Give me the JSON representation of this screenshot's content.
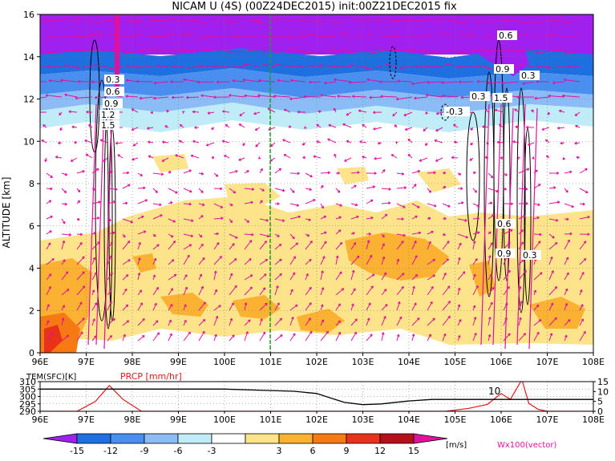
{
  "title": "NICAM U (4S) (00Z24DEC2015) init:00Z21DEC2015 fix",
  "main": {
    "ylabel": "ALTITUDE [km]",
    "x_ticks": [
      "96E",
      "97E",
      "98E",
      "99E",
      "100E",
      "101E",
      "102E",
      "103E",
      "104E",
      "105E",
      "106E",
      "107E",
      "108E"
    ],
    "y_ticks": [
      "0",
      "2",
      "4",
      "6",
      "8",
      "10",
      "12",
      "14",
      "16"
    ],
    "contour_labels": [
      "0.3",
      "0.6",
      "0.9",
      "1.2",
      "1.5",
      "-0.3",
      "0.3",
      "0.6",
      "0.9",
      "1.5",
      "0.3",
      "0.6",
      "0.9",
      "0.3"
    ]
  },
  "bottom": {
    "left_label": "TEM(SFC)[K]",
    "right_label": "PRCP [mm/hr]",
    "left_ticks": [
      "310",
      "305",
      "300",
      "295",
      "290"
    ],
    "right_ticks": [
      "15",
      "10",
      "5",
      "0"
    ],
    "inline_label": "10",
    "x_ticks": [
      "96E",
      "97E",
      "98E",
      "99E",
      "100E",
      "101E",
      "102E",
      "103E",
      "104E",
      "105E",
      "106E",
      "107E",
      "108E"
    ]
  },
  "colorbar": {
    "labels": [
      "-15",
      "-12",
      "-9",
      "-6",
      "-3",
      "3",
      "6",
      "9",
      "12",
      "15"
    ],
    "unit": "[m/s]",
    "colors": [
      "#a020f0",
      "#1e6fe0",
      "#4a8ff0",
      "#8bbcf5",
      "#c0ecf8",
      "#ffffff",
      "#fde38a",
      "#fbb232",
      "#f57a13",
      "#e8321c",
      "#b3101c",
      "#e0119d"
    ]
  },
  "vector_label": "Wx100(vector)",
  "chart_data": {
    "type": "heatmap",
    "title": "NICAM U (4S) (00Z24DEC2015) init:00Z21DEC2015 fix",
    "xlabel": "",
    "ylabel": "ALTITUDE [km]",
    "xlim": [
      96,
      108
    ],
    "ylim": [
      0,
      16
    ],
    "bands": [
      {
        "level": "-15",
        "color": "#a020f0",
        "y_range": [
          14.2,
          16
        ]
      },
      {
        "level": "-12",
        "color": "#1e6fe0",
        "y_range": [
          13.2,
          14.2
        ]
      },
      {
        "level": "-9",
        "color": "#4a8ff0",
        "y_range": [
          12.2,
          13.2
        ]
      },
      {
        "level": "-6",
        "color": "#8bbcf5",
        "y_range": [
          11.5,
          12.2
        ]
      },
      {
        "level": "-3",
        "color": "#c0ecf8",
        "y_range": [
          10.5,
          11.5
        ]
      },
      {
        "level": "6",
        "color": "#fde38a",
        "y_range": [
          2.0,
          5.0
        ]
      }
    ],
    "vertical_line_x": 101,
    "surface": {
      "temperature": {
        "x": [
          96,
          97,
          98,
          99,
          100,
          101,
          101.5,
          102,
          102.3,
          102.6,
          103,
          103.4,
          104,
          104.5,
          105,
          106,
          107,
          108
        ],
        "y": [
          305,
          305,
          305,
          305,
          305,
          304,
          303.5,
          302,
          299,
          296,
          294.5,
          295,
          297,
          298,
          298,
          298,
          298,
          298
        ],
        "ylim": [
          290,
          310
        ]
      },
      "precipitation": {
        "x": [
          96,
          96.8,
          97.2,
          97.5,
          97.8,
          98.2,
          99,
          100,
          101,
          102,
          103,
          104,
          104.8,
          105.3,
          105.7,
          106.0,
          106.2,
          106.45,
          106.6,
          106.8,
          107,
          108
        ],
        "y": [
          0,
          0,
          5,
          13,
          6,
          0,
          0,
          0,
          0,
          0,
          0,
          0,
          0,
          1.5,
          3.5,
          9,
          6,
          16,
          4,
          1,
          0,
          0
        ],
        "ylim": [
          0,
          15
        ]
      }
    }
  }
}
